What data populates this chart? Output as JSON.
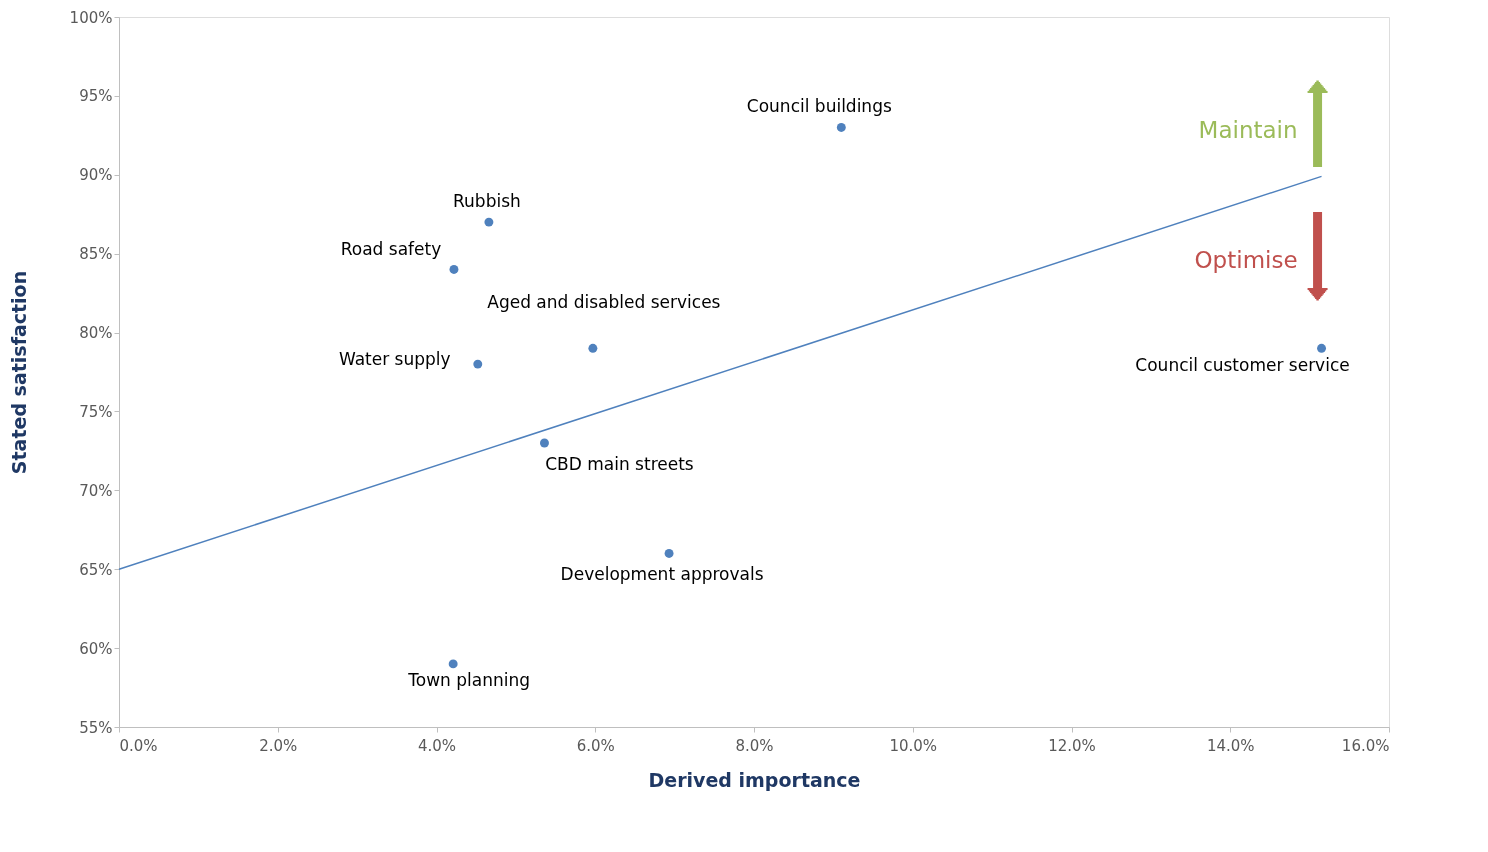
{
  "chart_data": {
    "type": "scatter",
    "xlabel": "Derived importance",
    "ylabel": "Stated satisfaction",
    "xlim": [
      0,
      16
    ],
    "ylim": [
      55,
      100
    ],
    "xticks": [
      {
        "value": 0,
        "label": "0.0%"
      },
      {
        "value": 2,
        "label": "2.0%"
      },
      {
        "value": 4,
        "label": "4.0%"
      },
      {
        "value": 6,
        "label": "6.0%"
      },
      {
        "value": 8,
        "label": "8.0%"
      },
      {
        "value": 10,
        "label": "10.0%"
      },
      {
        "value": 12,
        "label": "12.0%"
      },
      {
        "value": 14,
        "label": "14.0%"
      },
      {
        "value": 16,
        "label": "16.0%"
      }
    ],
    "yticks": [
      {
        "value": 55,
        "label": "55%"
      },
      {
        "value": 60,
        "label": "60%"
      },
      {
        "value": 65,
        "label": "65%"
      },
      {
        "value": 70,
        "label": "70%"
      },
      {
        "value": 75,
        "label": "75%"
      },
      {
        "value": 80,
        "label": "80%"
      },
      {
        "value": 85,
        "label": "85%"
      },
      {
        "value": 90,
        "label": "90%"
      },
      {
        "value": 95,
        "label": "95%"
      },
      {
        "value": 100,
        "label": "100%"
      }
    ],
    "grid": false,
    "series": [
      {
        "marker": "circle",
        "color": "#4f81bd",
        "x": [
          9.1,
          4.66,
          4.22,
          5.97,
          4.52,
          5.36,
          15.15,
          6.93,
          4.21
        ],
        "values": [
          93,
          87,
          84,
          79,
          78,
          73,
          79,
          66,
          59
        ]
      },
      {
        "type": "line",
        "color": "#4f81bd",
        "line_style": "solid",
        "x": [
          0,
          15.15
        ],
        "values": [
          65,
          89.9
        ]
      }
    ],
    "annotations": [
      {
        "text": "Council buildings",
        "x": 9.1,
        "y": 93
      },
      {
        "text": "Rubbish",
        "x": 4.66,
        "y": 87
      },
      {
        "text": "Road safety",
        "x": 4.22,
        "y": 84
      },
      {
        "text": "Aged and disabled services",
        "x": 5.97,
        "y": 79
      },
      {
        "text": "Water supply",
        "x": 4.52,
        "y": 78
      },
      {
        "text": "CBD main streets",
        "x": 5.36,
        "y": 73
      },
      {
        "text": "Council customer service",
        "x": 15.15,
        "y": 79
      },
      {
        "text": "Development approvals",
        "x": 6.93,
        "y": 66
      },
      {
        "text": "Town planning",
        "x": 4.21,
        "y": 59
      },
      "Maintain",
      "Optimise"
    ]
  }
}
